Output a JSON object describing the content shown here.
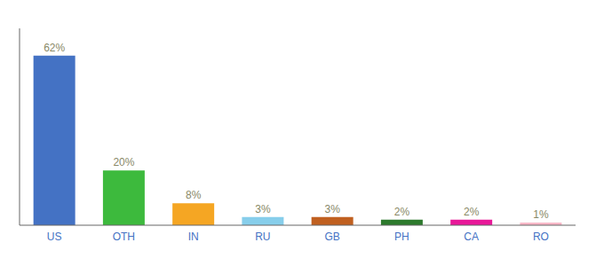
{
  "chart_data": {
    "type": "bar",
    "categories": [
      "US",
      "OTH",
      "IN",
      "RU",
      "GB",
      "PH",
      "CA",
      "RO"
    ],
    "values": [
      62,
      20,
      8,
      3,
      3,
      2,
      2,
      1
    ],
    "value_labels": [
      "62%",
      "20%",
      "8%",
      "3%",
      "3%",
      "2%",
      "2%",
      "1%"
    ],
    "colors": [
      "#4472c4",
      "#3dba3d",
      "#f5a623",
      "#87ceeb",
      "#c06020",
      "#2d7a2d",
      "#e81899",
      "#f9b8c8"
    ],
    "ylim": [
      0,
      72
    ],
    "data_labels": true,
    "tick_labels": "x"
  }
}
